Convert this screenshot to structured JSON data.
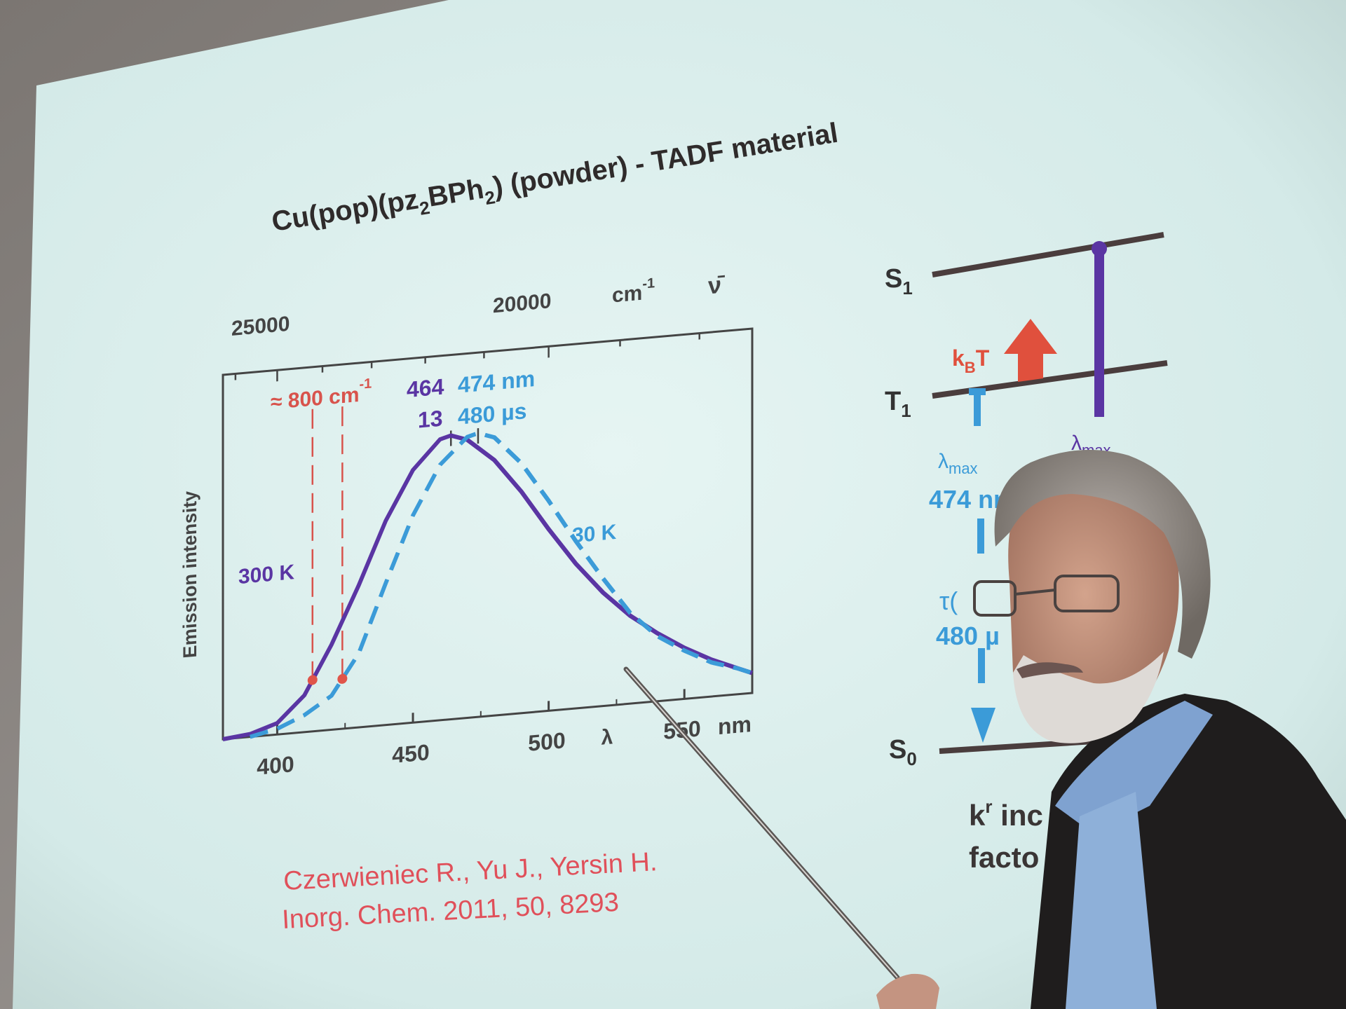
{
  "slide": {
    "title_main": "Cu(pop)(pz",
    "title_sub1": "2",
    "title_mid": "BPh",
    "title_sub2": "2",
    "title_tail": ") (powder) - TADF material",
    "reference_line1": "Czerwieniec R., Yu J., Yersin H.",
    "reference_line2": "Inorg. Chem. 2011, 50, 8293",
    "colors": {
      "screen": "#dcefee",
      "purple": "#5a35a3",
      "blue": "#3b9bd8",
      "red": "#e0554a",
      "dark": "#4a4444"
    }
  },
  "chart_data": {
    "type": "line",
    "ylabel": "Emission intensity",
    "xlabel": "λ",
    "x_unit": "nm",
    "xlim": [
      380,
      575
    ],
    "x_ticks": [
      "400",
      "450",
      "500",
      "550"
    ],
    "top_axis": {
      "label": "cm",
      "label_sup": "-1",
      "symbol": "ν̄",
      "ticks": [
        "25000",
        "20000"
      ]
    },
    "series": [
      {
        "name": "300 K",
        "style": "solid",
        "color": "#5a35a3",
        "x": [
          380,
          390,
          400,
          410,
          420,
          430,
          440,
          450,
          460,
          464,
          470,
          480,
          490,
          500,
          510,
          520,
          530,
          540,
          550,
          560,
          570,
          575
        ],
        "y": [
          0.0,
          0.01,
          0.04,
          0.13,
          0.3,
          0.5,
          0.72,
          0.89,
          0.99,
          1.0,
          0.98,
          0.9,
          0.78,
          0.64,
          0.51,
          0.4,
          0.31,
          0.24,
          0.18,
          0.13,
          0.09,
          0.07
        ]
      },
      {
        "name": "30 K",
        "style": "dashed",
        "color": "#3b9bd8",
        "x": [
          390,
          400,
          410,
          420,
          430,
          440,
          450,
          460,
          470,
          474,
          480,
          490,
          500,
          510,
          520,
          530,
          540,
          550,
          560,
          570,
          575
        ],
        "y": [
          0.0,
          0.02,
          0.06,
          0.12,
          0.26,
          0.5,
          0.73,
          0.9,
          0.99,
          1.0,
          0.98,
          0.88,
          0.74,
          0.59,
          0.45,
          0.32,
          0.23,
          0.17,
          0.12,
          0.09,
          0.07
        ]
      }
    ],
    "annotations": {
      "energy_gap": "≈ 800 cm",
      "energy_gap_sup": "-1",
      "peak_300K": "464",
      "peak_30K": "474 nm",
      "tau_300K": "13",
      "tau_30K": "480 µs",
      "label_300K": "300 K",
      "label_30K": "30 K"
    }
  },
  "diagram": {
    "S1": "S",
    "S1_sub": "1",
    "T1": "T",
    "T1_sub": "1",
    "S0": "S",
    "S0_sub": "0",
    "kBT": "k",
    "kBT_sub": "B",
    "kBT_tail": "T",
    "lambda_left": "λ",
    "lambda_left_sub": "max",
    "lambda_right": "λ",
    "lambda_right_sub": "max",
    "wavelength": "474 nm",
    "tau": "τ(",
    "tau_value": "480 µ",
    "kr_line1": "k",
    "kr_sup": "r",
    "kr_tail": " inc",
    "kr_line2": "facto"
  }
}
